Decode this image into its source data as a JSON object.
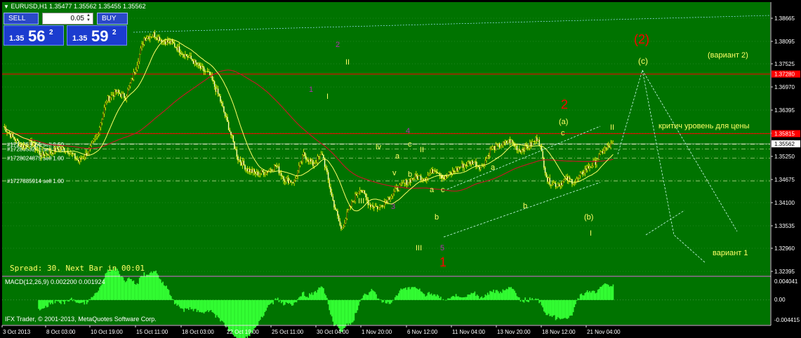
{
  "window_title": "EURUSD,H1  1.35477 1.35562 1.35455 1.35562",
  "trade_panel": {
    "sell_label": "SELL",
    "buy_label": "BUY",
    "lot": "0.05",
    "sell_prefix": "1.35",
    "sell_big": "56",
    "sell_sup": "2",
    "buy_prefix": "1.35",
    "buy_big": "59",
    "buy_sup": "2"
  },
  "status_text": "Spread: 30. Next Bar in 00:01",
  "copyright": "IFX Trader, © 2001-2013, MetaQuotes Software Corp.",
  "macd": {
    "label": "MACD(12,26,9) 0.002200 0.001924",
    "ticks": [
      "0.004041",
      "0.00",
      "-0.004415"
    ],
    "tick_values": [
      0.004041,
      0.0,
      -0.004415
    ]
  },
  "price_axis": {
    "ticks": [
      "1.38665",
      "1.38095",
      "1.37525",
      "1.36970",
      "1.36395",
      "1.35825",
      "1.35250",
      "1.34675",
      "1.34100",
      "1.33535",
      "1.32960",
      "1.32395"
    ],
    "tick_values": [
      1.38665,
      1.38095,
      1.37525,
      1.3697,
      1.36395,
      1.35825,
      1.3525,
      1.34675,
      1.341,
      1.33535,
      1.3296,
      1.32395
    ],
    "red_level_1": "1.37280",
    "red_level_1_value": 1.3728,
    "red_level_2": "1.35815",
    "red_level_2_value": 1.35815,
    "current_price": "1.35562",
    "current_price_value": 1.35562
  },
  "time_axis": [
    "3 Oct 2013",
    "8 Oct 03:00",
    "10 Oct 19:00",
    "15 Oct 11:00",
    "18 Oct 03:00",
    "22 Oct 19:00",
    "25 Oct 11:00",
    "30 Oct 04:00",
    "1 Nov 20:00",
    "6 Nov 12:00",
    "11 Nov 04:00",
    "13 Nov 20:00",
    "18 Nov 12:00",
    "21 Nov 04:00"
  ],
  "orders": [
    {
      "label": "#1728855355 sell 0.50",
      "price": 1.3555
    },
    {
      "label": "#1728053241 sell 0.30",
      "price": 1.3543
    },
    {
      "label": "#1728024875 sell 1.00",
      "price": 1.3521
    },
    {
      "label": "#1727885914 sell 1.00",
      "price": 1.3464
    }
  ],
  "annotations": {
    "a_2_paren": "(2)",
    "a_c_paren": "(c)",
    "variant2": "(вариант 2)",
    "critical": "критич уровень для цены",
    "variant1": "вариант 1",
    "red2": "2",
    "red1": "1",
    "a_paren": "(a)",
    "b_paren": "(b)",
    "w1": "1",
    "w2": "2",
    "w3": "3",
    "w4": "4",
    "w5": "5",
    "II_top": "II",
    "I_a": "I",
    "I_b": "I",
    "II_b": "II",
    "II_c": "II",
    "III_a": "III",
    "III_b": "III",
    "IV_a": "lv",
    "IV_b": "lv",
    "V_a": "v",
    "a1": "a",
    "a2": "a",
    "a3": "a",
    "b1": "b",
    "b2": "b",
    "b3": "b",
    "c1": "c",
    "c2": "c",
    "c3": "c"
  },
  "colors": {
    "chart_bg": "#007300",
    "candle": "#ffff00",
    "ma_slow": "#b22222",
    "ma_fast": "#ffff66",
    "macd_fill": "#33ff33",
    "grid": "#9ad19a",
    "red_level": "#ff0000",
    "purple_label": "#b030b0"
  },
  "chart_data": {
    "type": "candlestick",
    "symbol": "EURUSD",
    "timeframe": "H1",
    "ylim": [
      1.3225,
      1.3875
    ],
    "x_ticks": [
      "3 Oct 2013",
      "8 Oct 03:00",
      "10 Oct 19:00",
      "15 Oct 11:00",
      "18 Oct 03:00",
      "22 Oct 19:00",
      "25 Oct 11:00",
      "30 Oct 04:00",
      "1 Nov 20:00",
      "6 Nov 12:00",
      "11 Nov 04:00",
      "13 Nov 20:00",
      "18 Nov 12:00",
      "21 Nov 04:00"
    ],
    "series": [
      {
        "x": [
          0,
          8,
          16,
          24,
          32,
          40,
          48,
          56,
          64,
          72,
          80,
          88,
          96,
          104,
          112,
          120,
          128,
          136
        ],
        "values": [
          1.3599,
          1.3572,
          1.355,
          1.3558,
          1.3528,
          1.3535,
          1.3546,
          1.3538,
          1.3513,
          1.3535,
          1.3578,
          1.3665,
          1.3685,
          1.3672,
          1.3735,
          1.3818,
          1.3827,
          1.3811
        ]
      },
      {
        "x": [
          144,
          152,
          160,
          168,
          176,
          184,
          192,
          200,
          208,
          216,
          224,
          232,
          240,
          248,
          256,
          264,
          272,
          280
        ],
        "values": [
          1.3805,
          1.3782,
          1.3764,
          1.3742,
          1.3725,
          1.3672,
          1.3598,
          1.352,
          1.3493,
          1.3482,
          1.3487,
          1.3502,
          1.3468,
          1.3462,
          1.353,
          1.3505,
          1.3532,
          1.3425
        ]
      },
      {
        "x": [
          288,
          296,
          304,
          312,
          320,
          328,
          336,
          344,
          352,
          360,
          368,
          376,
          384,
          392,
          400,
          408,
          416,
          424
        ],
        "values": [
          1.3344,
          1.3402,
          1.3448,
          1.3406,
          1.3398,
          1.3421,
          1.3445,
          1.3462,
          1.3475,
          1.3472,
          1.3495,
          1.3471,
          1.3488,
          1.3503,
          1.3512,
          1.3497,
          1.3545,
          1.3552
        ]
      },
      {
        "x": [
          432,
          440,
          448,
          456,
          464,
          472,
          480,
          488,
          496,
          504,
          512,
          520
        ],
        "values": [
          1.3564,
          1.3541,
          1.355,
          1.3572,
          1.3465,
          1.3454,
          1.3468,
          1.3462,
          1.3492,
          1.3508,
          1.3542,
          1.3556
        ]
      }
    ],
    "macd_range": [
      -0.0045,
      0.0042
    ]
  }
}
